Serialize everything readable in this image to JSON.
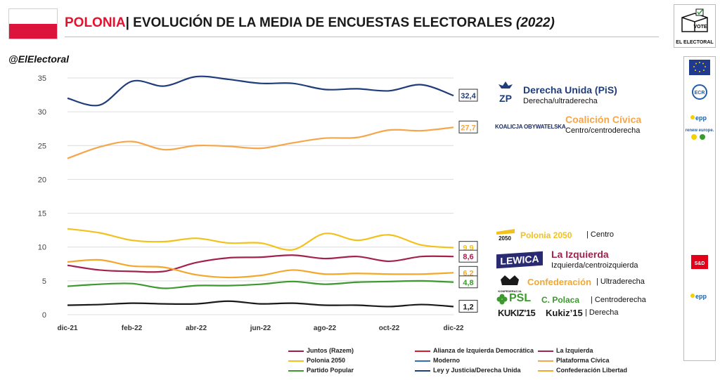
{
  "header": {
    "country": "POLONIA",
    "separator": "|",
    "title": "EVOLUCIÓN DE LA MEDIA DE ENCUESTAS ELECTORALES",
    "year": "(2022)"
  },
  "handle": "@ElElectoral",
  "brand": {
    "vote_label": "VOTE",
    "name": "EL ELECTORAL"
  },
  "colors": {
    "pis": "#1f3d7a",
    "ko": "#f5a64a",
    "pl2050": "#f3c11b",
    "lewica": "#a3214f",
    "konf": "#f4a72b",
    "psl": "#3a9a2c",
    "kukiz": "#1a1a1a",
    "flag_red": "#dc143c"
  },
  "parties": [
    {
      "logo": "ZP",
      "name": "Derecha Unida (PiS)",
      "ideology": "Derecha/ultraderecha",
      "color": "#1f3d7a"
    },
    {
      "logo": "KOALICJA OBYWATELSKA",
      "name": "Coalición Cívica",
      "ideology": "Centro/centroderecha",
      "color": "#f5a64a"
    },
    {
      "logo": "2050",
      "name": "Polonia 2050",
      "ideology": "Centro",
      "color": "#f3c11b"
    },
    {
      "logo": "LEWICA",
      "name": "La Izquierda",
      "ideology": "Izquierda/centroizquierda",
      "color": "#a3214f"
    },
    {
      "logo": "KONFEDERACJA",
      "name": "Confederación",
      "ideology": "Ultraderecha",
      "color": "#f4a72b"
    },
    {
      "logo": "PSL",
      "name": "C. Polaca",
      "ideology": "Centroderecha",
      "color": "#3a9a2c"
    },
    {
      "logo": "KUKIZ'15",
      "name": "Kukiz’15",
      "ideology": "Derecha",
      "color": "#1a1a1a"
    }
  ],
  "side_logos": [
    "ECR",
    "epp",
    "renew europe.",
    "S&D",
    "epp"
  ],
  "chart_data": {
    "type": "line",
    "x": [
      "dic-21",
      "ene-22",
      "feb-22",
      "mar-22",
      "abr-22",
      "may-22",
      "jun-22",
      "jul-22",
      "ago-22",
      "sep-22",
      "oct-22",
      "nov-22",
      "dic-22"
    ],
    "xticks": [
      "dic-21",
      "feb-22",
      "abr-22",
      "jun-22",
      "ago-22",
      "oct-22",
      "dic-22"
    ],
    "ylim": [
      0,
      35
    ],
    "yticks": [
      0,
      5,
      10,
      15,
      20,
      25,
      30,
      35
    ],
    "grid": true,
    "series": [
      {
        "name": "Ley y Justicia/Derecha Unida",
        "color": "#1f3d7a",
        "values": [
          32.0,
          31.0,
          34.5,
          33.8,
          35.2,
          34.8,
          34.2,
          34.2,
          33.3,
          33.4,
          33.1,
          34.0,
          32.4
        ],
        "end_label": "32,4"
      },
      {
        "name": "Plataforma Cívica",
        "color": "#f5a64a",
        "values": [
          23.1,
          24.8,
          25.6,
          24.4,
          25.0,
          24.9,
          24.6,
          25.4,
          26.1,
          26.2,
          27.3,
          27.2,
          27.7
        ],
        "end_label": "27,7"
      },
      {
        "name": "Polonia 2050",
        "color": "#f3c11b",
        "values": [
          12.7,
          12.1,
          11.0,
          10.8,
          11.3,
          10.6,
          10.6,
          9.6,
          12.0,
          11.0,
          11.8,
          10.3,
          9.9
        ],
        "end_label": "9,9"
      },
      {
        "name": "La Izquierda",
        "color": "#a3214f",
        "values": [
          7.3,
          6.6,
          6.4,
          6.4,
          7.7,
          8.4,
          8.5,
          8.8,
          8.3,
          8.6,
          7.9,
          8.6,
          8.6
        ],
        "end_label": "8,6"
      },
      {
        "name": "Confederación Libertad",
        "color": "#f4a72b",
        "values": [
          7.8,
          8.1,
          7.2,
          7.0,
          5.9,
          5.5,
          5.8,
          6.6,
          6.0,
          6.1,
          6.0,
          6.0,
          6.2
        ],
        "end_label": "6,2"
      },
      {
        "name": "Partido Popular",
        "color": "#3a9a2c",
        "values": [
          4.2,
          4.5,
          4.6,
          3.9,
          4.3,
          4.3,
          4.5,
          4.9,
          4.5,
          4.8,
          4.9,
          5.0,
          4.8
        ],
        "end_label": "4,8"
      },
      {
        "name": "Kukiz'15",
        "color": "#1a1a1a",
        "values": [
          1.4,
          1.5,
          1.7,
          1.6,
          1.6,
          2.0,
          1.6,
          1.7,
          1.4,
          1.4,
          1.2,
          1.5,
          1.2
        ],
        "end_label": "1,2"
      }
    ],
    "legend": {
      "placement": "bottom",
      "entries": [
        {
          "name": "Juntos (Razem)",
          "color": "#9c1f4b"
        },
        {
          "name": "Alianza de Izquierda Democrática",
          "color": "#d31b2a"
        },
        {
          "name": "La Izquierda",
          "color": "#a3214f"
        },
        {
          "name": "Polonia 2050",
          "color": "#f3c11b"
        },
        {
          "name": "Moderno",
          "color": "#2f6fb5"
        },
        {
          "name": "Plataforma Cívica",
          "color": "#f5a64a"
        },
        {
          "name": "Partido Popular",
          "color": "#3a9a2c"
        },
        {
          "name": "Ley y Justicia/Derecha Unida",
          "color": "#1f3d7a"
        },
        {
          "name": "Confederación Libertad",
          "color": "#f4a72b"
        }
      ]
    }
  }
}
